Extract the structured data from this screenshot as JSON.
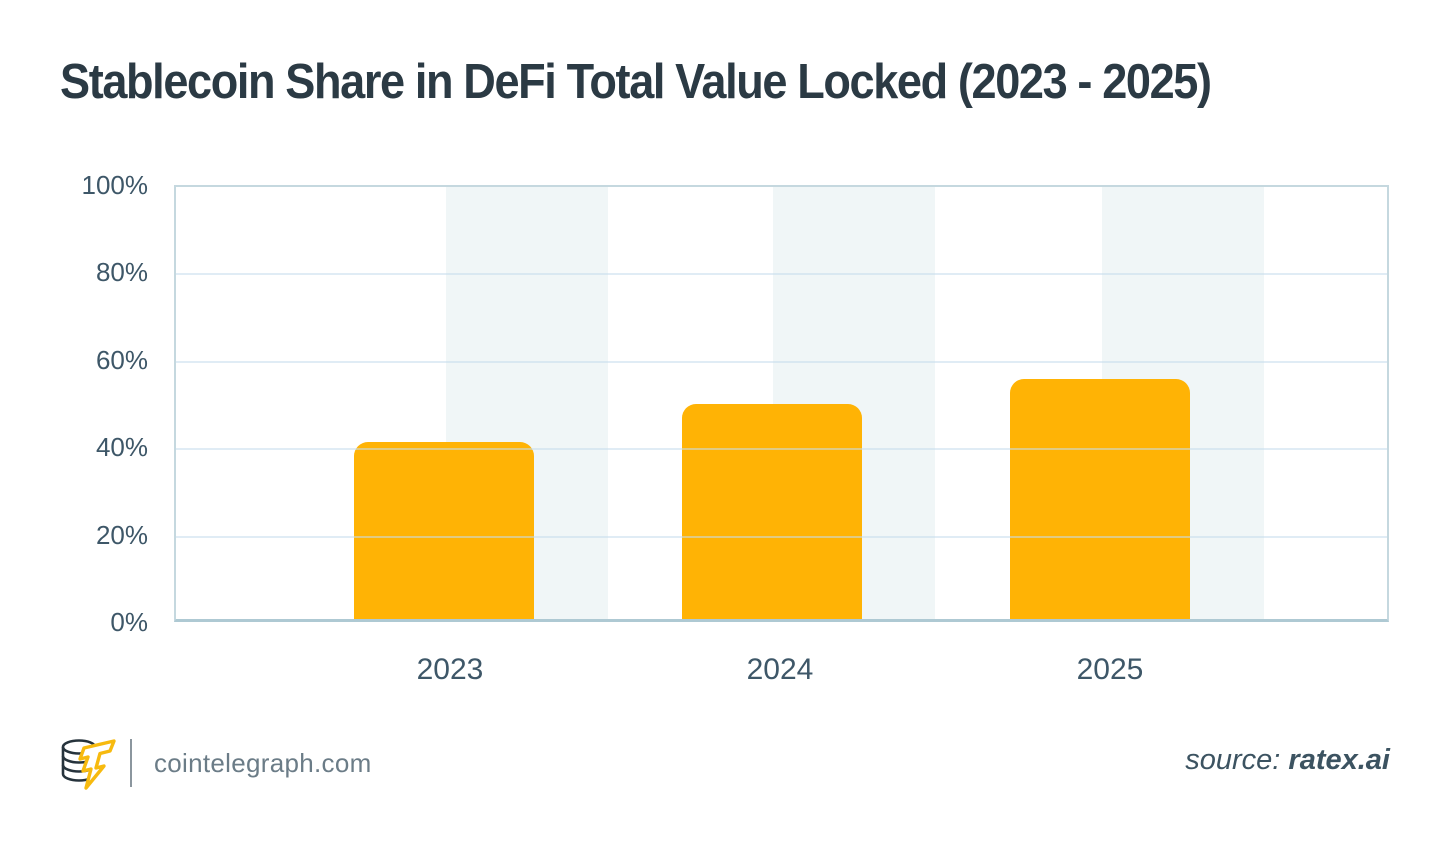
{
  "header": {
    "title": "Stablecoin Share in DeFi Total Value Locked (2023 - 2025)"
  },
  "chart_data": {
    "type": "bar",
    "title": "Stablecoin Share in DeFi Total Value Locked (2023 - 2025)",
    "categories": [
      "2023",
      "2024",
      "2025"
    ],
    "values": [
      40.5,
      49.3,
      54.9
    ],
    "unit": "%",
    "xlabel": "",
    "ylabel": "",
    "ylim": [
      0,
      100
    ],
    "yticks": [
      0,
      20,
      40,
      60,
      80,
      100
    ],
    "ytick_labels": [
      "0%",
      "20%",
      "40%",
      "60%",
      "80%",
      "100%"
    ],
    "legend": "none",
    "grid": "horizontal",
    "bar_color": "#FFB305",
    "band_color": "#F0F6F7"
  },
  "footer": {
    "site": "cointelegraph.com",
    "source_label": "source:",
    "source_value": "ratex.ai"
  },
  "icons": {
    "logo": "cointelegraph-coin-stack-lightning"
  },
  "colors": {
    "title": "#2B3A44",
    "axis_text": "#3E5768",
    "bar": "#FFB305",
    "logo_yellow": "#F7BA0F",
    "logo_dark": "#26333C",
    "footer_text": "#6B7C87",
    "source_text": "#3C5361",
    "gridline": "#DCE9F1",
    "plot_border": "#C5D8DF"
  }
}
